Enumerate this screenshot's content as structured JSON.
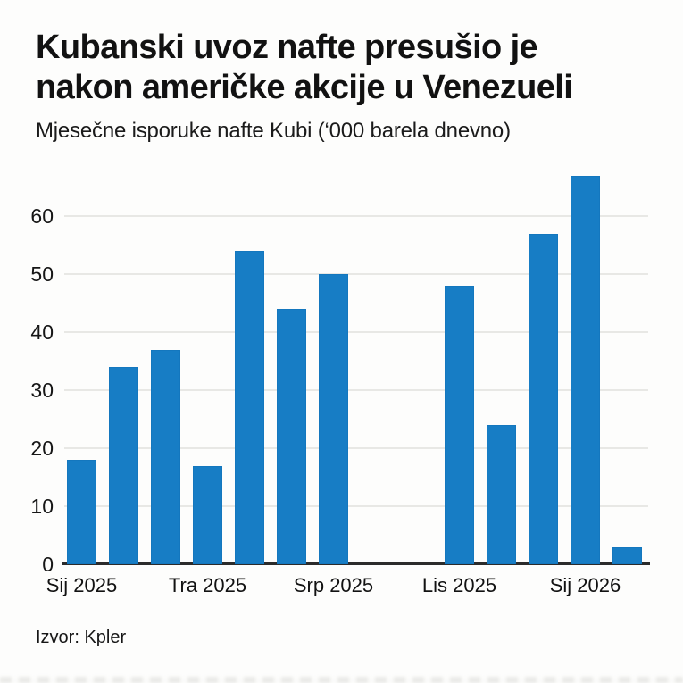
{
  "chart_data": {
    "type": "bar",
    "title": "Kubanski uvoz nafte presušio je nakon američke akcije u Venezueli",
    "title_lines": [
      "Kubanski uvoz nafte presušio je",
      "nakon američke akcije u Venezueli"
    ],
    "subtitle": "Mjesečne isporuke nafte Kubi (‘000 barela dnevno)",
    "source": "Izvor: Kpler",
    "xlabel": "",
    "ylabel": "",
    "values": [
      18,
      34,
      37,
      17,
      54,
      44,
      50,
      0,
      0,
      48,
      24,
      57,
      67,
      3
    ],
    "x_tick_labels": [
      "Sij 2025",
      "Tra 2025",
      "Srp 2025",
      "Lis 2025",
      "Sij 2026"
    ],
    "x_tick_indices": [
      0,
      3,
      6,
      9,
      12
    ],
    "y_ticks": [
      0,
      10,
      20,
      30,
      40,
      50,
      60
    ],
    "ylim": [
      0,
      70
    ],
    "grid": true,
    "legend": false,
    "colors": {
      "bar": "#177dc5",
      "bar_edge": "#0f6cb0",
      "grid": "#e8e8e5",
      "axis": "#2b2b2b",
      "text": "#121212",
      "background": "#fdfdfc"
    }
  }
}
